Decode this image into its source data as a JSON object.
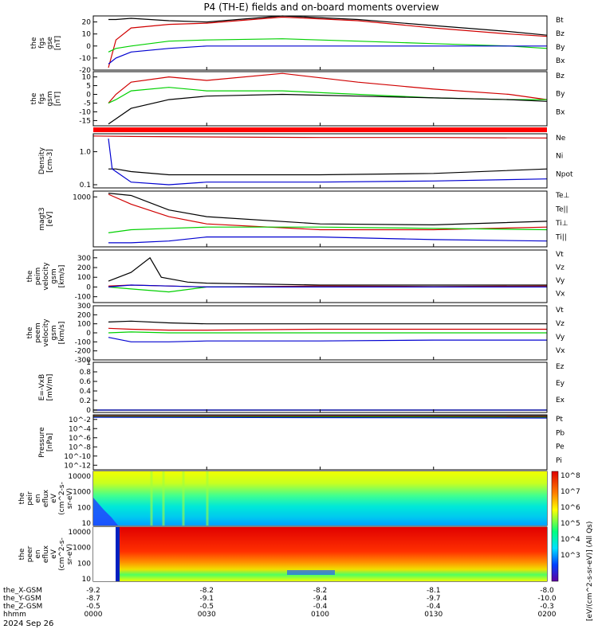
{
  "title": "P4 (TH-E) fields and on-board moments overview",
  "time_range": [
    0,
    120
  ],
  "x_ticks": [
    0,
    30,
    60,
    90,
    120
  ],
  "footer": {
    "rows": [
      {
        "label": "the_X-GSM",
        "values": [
          "-9.2",
          "-8.2",
          "-8.2",
          "-8.1",
          "-8.0"
        ]
      },
      {
        "label": "the_Y-GSM",
        "values": [
          "-8.7",
          "-9.1",
          "-9.4",
          "-9.7",
          "-10.0"
        ]
      },
      {
        "label": "the_Z-GSM",
        "values": [
          "-0.5",
          "-0.5",
          "-0.4",
          "-0.4",
          "-0.3"
        ]
      },
      {
        "label": "hhmm",
        "values": [
          "0000",
          "0030",
          "0100",
          "0130",
          "0200"
        ]
      }
    ],
    "date": "2024 Sep 26"
  },
  "colorbar": {
    "labels": [
      "10^8",
      "10^7",
      "10^6",
      "10^5",
      "10^4",
      "10^3"
    ],
    "title": "[eV/(cm^2-s-sr-eV)] (All Qs)"
  },
  "chart_data": [
    {
      "type": "line",
      "panel": "fgs_gse",
      "ylabel": [
        "the",
        "fgs",
        "gse",
        "[nT]"
      ],
      "ylim": [
        -20,
        25
      ],
      "yticks": [
        20,
        10,
        0,
        -10,
        -20
      ],
      "series": [
        {
          "name": "Bt",
          "color": "#000000",
          "x": [
            4,
            6,
            10,
            20,
            30,
            50,
            70,
            90,
            110,
            120
          ],
          "values": [
            22,
            22,
            23,
            21,
            20,
            25,
            22,
            17,
            12,
            9
          ]
        },
        {
          "name": "Bz",
          "color": "#d00000",
          "x": [
            4,
            6,
            10,
            20,
            30,
            50,
            70,
            90,
            110,
            120
          ],
          "values": [
            -18,
            5,
            15,
            18,
            19,
            24,
            21,
            15,
            10,
            8
          ]
        },
        {
          "name": "By",
          "color": "#00d000",
          "x": [
            4,
            6,
            10,
            20,
            30,
            50,
            70,
            90,
            110,
            120
          ],
          "values": [
            -5,
            -2,
            0,
            4,
            5,
            6,
            4,
            2,
            0,
            -2
          ]
        },
        {
          "name": "Bx",
          "color": "#0000d0",
          "x": [
            4,
            6,
            10,
            20,
            30,
            50,
            70,
            90,
            110,
            120
          ],
          "values": [
            -15,
            -10,
            -5,
            -2,
            0,
            0,
            0,
            0,
            0,
            0
          ]
        }
      ]
    },
    {
      "type": "line",
      "panel": "fgs_gsm",
      "ylabel": [
        "the",
        "fgs",
        "gsm",
        "[nT]"
      ],
      "ylim": [
        -18,
        13
      ],
      "yticks": [
        10,
        5,
        0,
        -5,
        -10,
        -15
      ],
      "series": [
        {
          "name": "Bz",
          "color": "#d00000",
          "x": [
            4,
            6,
            10,
            20,
            30,
            50,
            70,
            90,
            110,
            120
          ],
          "values": [
            -5,
            0,
            7,
            10,
            8,
            12,
            7,
            3,
            0,
            -3
          ]
        },
        {
          "name": "By",
          "color": "#00d000",
          "x": [
            4,
            6,
            10,
            20,
            30,
            50,
            70,
            90,
            110,
            120
          ],
          "values": [
            -5,
            -3,
            2,
            4,
            2,
            2,
            0,
            -2,
            -3,
            -3
          ]
        },
        {
          "name": "Bx",
          "color": "#000000",
          "x": [
            4,
            6,
            10,
            20,
            30,
            50,
            70,
            90,
            110,
            120
          ],
          "values": [
            -17,
            -14,
            -8,
            -3,
            -1,
            0,
            -1,
            -2,
            -3,
            -4
          ]
        }
      ]
    },
    {
      "type": "line",
      "panel": "density",
      "ylabel": [
        "Density",
        "[cm-3]"
      ],
      "ylog": true,
      "ylim": [
        0.08,
        3.5
      ],
      "yticks": [
        1,
        0.1
      ],
      "ytick_labels": [
        "1.0",
        "0.1"
      ],
      "series": [
        {
          "name": "Ne",
          "color": "#d00000",
          "x": [
            0,
            10,
            30,
            60,
            90,
            120
          ],
          "values": [
            3,
            2.9,
            2.8,
            2.7,
            2.7,
            2.6
          ]
        },
        {
          "name": "Ni",
          "color": "#000000",
          "x": [
            4,
            6,
            10,
            20,
            30,
            60,
            90,
            120
          ],
          "values": [
            0.3,
            0.3,
            0.25,
            0.2,
            0.2,
            0.2,
            0.22,
            0.3
          ]
        },
        {
          "name": "Npot",
          "color": "#0000d0",
          "x": [
            4,
            5,
            6,
            10,
            20,
            30,
            60,
            90,
            120
          ],
          "values": [
            2.5,
            0.3,
            0.25,
            0.12,
            0.1,
            0.12,
            0.12,
            0.13,
            0.15
          ]
        }
      ]
    },
    {
      "type": "line",
      "panel": "temperature",
      "ylabel": [
        "magt3",
        "[eV]"
      ],
      "ylog": true,
      "ylim": [
        30,
        1500
      ],
      "yticks": [
        1000
      ],
      "ytick_labels": [
        "1000"
      ],
      "series": [
        {
          "name": "Te⊥",
          "color": "#d00000",
          "x": [
            4,
            10,
            20,
            30,
            60,
            90,
            120
          ],
          "values": [
            1200,
            600,
            250,
            150,
            100,
            100,
            120
          ]
        },
        {
          "name": "Te||",
          "color": "#000000",
          "x": [
            4,
            10,
            20,
            30,
            60,
            90,
            120
          ],
          "values": [
            1300,
            1100,
            400,
            250,
            150,
            140,
            180
          ]
        },
        {
          "name": "Ti⊥",
          "color": "#0000d0",
          "x": [
            4,
            10,
            20,
            30,
            60,
            90,
            120
          ],
          "values": [
            40,
            40,
            45,
            60,
            60,
            50,
            45
          ]
        },
        {
          "name": "Ti||",
          "color": "#00d000",
          "x": [
            4,
            10,
            20,
            30,
            60,
            90,
            120
          ],
          "values": [
            80,
            100,
            110,
            120,
            120,
            110,
            100
          ]
        }
      ]
    },
    {
      "type": "line",
      "panel": "peim_velocity",
      "ylabel": [
        "the",
        "peim",
        "velocity",
        "gsm",
        "[km/s]"
      ],
      "ylim": [
        -160,
        380
      ],
      "yticks": [
        300,
        200,
        100,
        0,
        -100
      ],
      "series": [
        {
          "name": "Vt",
          "color": "#000000",
          "x": [
            4,
            10,
            15,
            18,
            25,
            30,
            60,
            90,
            120
          ],
          "values": [
            60,
            150,
            300,
            100,
            50,
            40,
            20,
            20,
            20
          ]
        },
        {
          "name": "Vz",
          "color": "#d00000",
          "x": [
            4,
            10,
            20,
            30,
            60,
            90,
            120
          ],
          "values": [
            10,
            20,
            10,
            0,
            10,
            5,
            10
          ]
        },
        {
          "name": "Vy",
          "color": "#00d000",
          "x": [
            4,
            10,
            20,
            30,
            60,
            90,
            120
          ],
          "values": [
            0,
            -20,
            -50,
            0,
            0,
            0,
            0
          ]
        },
        {
          "name": "Vx",
          "color": "#0000d0",
          "x": [
            4,
            10,
            20,
            30,
            60,
            90,
            120
          ],
          "values": [
            0,
            20,
            10,
            0,
            0,
            0,
            0
          ]
        }
      ]
    },
    {
      "type": "line",
      "panel": "peem_velocity",
      "ylabel": [
        "the",
        "peem",
        "velocity",
        "gsm",
        "[km/s]"
      ],
      "ylim": [
        -300,
        300
      ],
      "yticks": [
        300,
        200,
        100,
        0,
        -100,
        -200,
        -300
      ],
      "series": [
        {
          "name": "Vt",
          "color": "#000000",
          "x": [
            4,
            10,
            20,
            30,
            60,
            90,
            120
          ],
          "values": [
            120,
            130,
            110,
            100,
            100,
            100,
            100
          ]
        },
        {
          "name": "Vz",
          "color": "#d00000",
          "x": [
            4,
            10,
            20,
            30,
            60,
            90,
            120
          ],
          "values": [
            50,
            40,
            30,
            30,
            40,
            40,
            40
          ]
        },
        {
          "name": "Vy",
          "color": "#00d000",
          "x": [
            4,
            10,
            20,
            30,
            60,
            90,
            120
          ],
          "values": [
            0,
            10,
            0,
            0,
            0,
            0,
            0
          ]
        },
        {
          "name": "Vx",
          "color": "#0000d0",
          "x": [
            4,
            10,
            20,
            30,
            60,
            90,
            120
          ],
          "values": [
            -50,
            -100,
            -100,
            -90,
            -90,
            -80,
            -80
          ]
        }
      ]
    },
    {
      "type": "line",
      "panel": "efield",
      "ylabel": [
        "E=-VxB",
        "[mV/m]"
      ],
      "ylim": [
        -0.05,
        1.0
      ],
      "yticks": [
        1.0,
        0.8,
        0.6,
        0.4,
        0.2,
        0.0
      ],
      "series": [
        {
          "name": "Ez",
          "color": "#d00000",
          "x": [
            0,
            120
          ],
          "values": [
            0,
            0
          ]
        },
        {
          "name": "Ey",
          "color": "#00d000",
          "x": [
            0,
            120
          ],
          "values": [
            0,
            0
          ]
        },
        {
          "name": "Ex",
          "color": "#0000d0",
          "x": [
            0,
            120
          ],
          "values": [
            0,
            0
          ]
        }
      ]
    },
    {
      "type": "line",
      "panel": "pressure",
      "ylabel": [
        "Pressure",
        "[nPa]"
      ],
      "ylog": true,
      "ylim": [
        1e-13,
        0.1
      ],
      "yticks": [
        0.01,
        0.0001,
        1e-06,
        1e-08,
        1e-10,
        1e-12
      ],
      "ytick_labels": [
        "10^-2",
        "10^-4",
        "10^-6",
        "10^-8",
        "10^-10",
        "10^-12"
      ],
      "series": [
        {
          "name": "Pt",
          "color": "#000000",
          "x": [
            0,
            120
          ],
          "values": [
            0.06,
            0.06
          ]
        },
        {
          "name": "Pb",
          "color": "#d00000",
          "x": [
            0,
            120
          ],
          "values": [
            0.05,
            0.04
          ]
        },
        {
          "name": "Pe",
          "color": "#00d000",
          "x": [
            0,
            120
          ],
          "values": [
            0.04,
            0.03
          ]
        },
        {
          "name": "Pi",
          "color": "#0000d0",
          "x": [
            0,
            120
          ],
          "values": [
            0.03,
            0.02
          ]
        }
      ]
    },
    {
      "type": "heatmap",
      "panel": "peir_eflux",
      "ylabel": [
        "the",
        "peir",
        "en",
        "eflux",
        "eV",
        "(cm^2-s-",
        "sr-eV)"
      ],
      "ylog": true,
      "ylim": [
        7,
        20000
      ],
      "yticks": [
        10000,
        1000,
        100,
        10
      ],
      "ytick_labels": [
        "10000",
        "1000",
        "100",
        "10"
      ]
    },
    {
      "type": "heatmap",
      "panel": "peer_eflux",
      "ylabel": [
        "the",
        "peer",
        "en",
        "eflux",
        "eV",
        "(cm^2-s-",
        "sr-eV)"
      ],
      "ylog": true,
      "ylim": [
        7,
        20000
      ],
      "yticks": [
        10000,
        1000,
        100,
        10
      ],
      "ytick_labels": [
        "10000",
        "1000",
        "100",
        "10"
      ]
    }
  ]
}
